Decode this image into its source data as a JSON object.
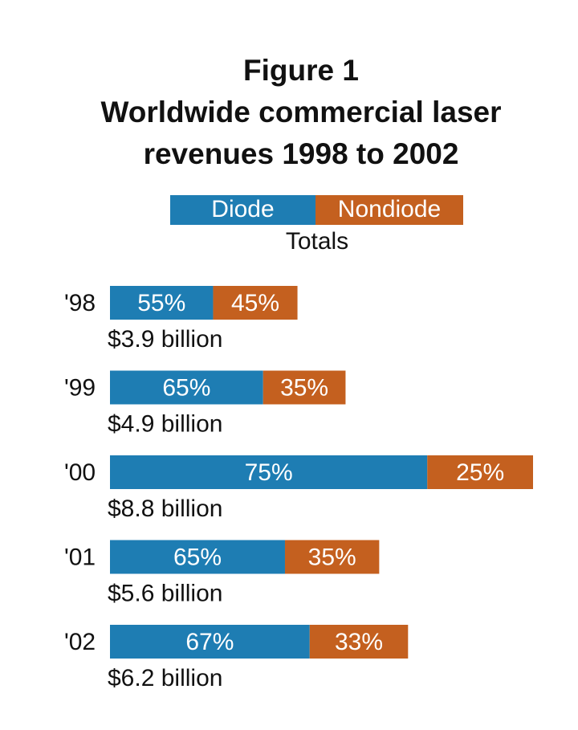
{
  "chart_data": {
    "type": "stacked-bar-horizontal",
    "title": "Figure 1",
    "subtitle": "Worldwide commercial laser revenues 1998 to 2002",
    "categories": [
      "'98",
      "'99",
      "'00",
      "'01",
      "'02"
    ],
    "series": [
      {
        "name": "Diode",
        "color": "#1e7db3",
        "values": [
          55,
          65,
          75,
          65,
          67
        ],
        "value_labels": [
          "55%",
          "65%",
          "75%",
          "65%",
          "67%"
        ]
      },
      {
        "name": "Nondiode",
        "color": "#c4601f",
        "values": [
          45,
          35,
          25,
          35,
          33
        ],
        "value_labels": [
          "45%",
          "35%",
          "25%",
          "35%",
          "33%"
        ]
      }
    ],
    "totals": {
      "name": "Totals",
      "values": [
        3.9,
        4.9,
        8.8,
        5.6,
        6.2
      ],
      "value_labels": [
        "$3.9 billion",
        "$4.9 billion",
        "$8.8 billion",
        "$5.6 billion",
        "$6.2 billion"
      ]
    }
  }
}
